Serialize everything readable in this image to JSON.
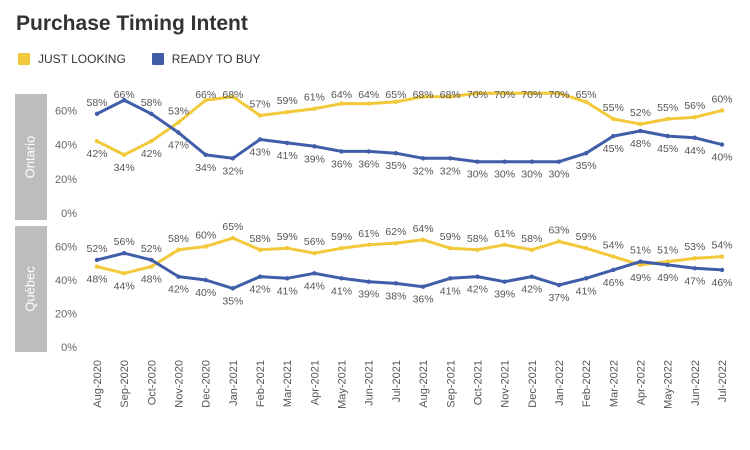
{
  "title": "Purchase Timing Intent",
  "colors": {
    "just_looking": "#F2C93A",
    "ready_to_buy": "#3F5DA8",
    "panel_strip": "#BDBDBD"
  },
  "legend": [
    {
      "label": "JUST LOOKING",
      "color": "#F2C93A"
    },
    {
      "label": "READY TO BUY",
      "color": "#3F5DA8"
    }
  ],
  "chart_data": {
    "type": "line",
    "title": "Purchase Timing Intent",
    "categories": [
      "Aug-2020",
      "Sep-2020",
      "Oct-2020",
      "Nov-2020",
      "Dec-2020",
      "Jan-2021",
      "Feb-2021",
      "Mar-2021",
      "Apr-2021",
      "May-2021",
      "Jun-2021",
      "Jul-2021",
      "Aug-2021",
      "Sep-2021",
      "Oct-2021",
      "Nov-2021",
      "Dec-2021",
      "Jan-2022",
      "Feb-2022",
      "Mar-2022",
      "Apr-2022",
      "May-2022",
      "Jun-2022",
      "Jul-2022"
    ],
    "y_ticks": [
      "0%",
      "20%",
      "40%",
      "60%"
    ],
    "ylim": [
      0,
      70
    ],
    "grid": false,
    "legend_position": "top-left",
    "panels": [
      {
        "name": "Ontario",
        "series": [
          {
            "name": "JUST LOOKING",
            "values": [
              42,
              34,
              42,
              53,
              66,
              68,
              57,
              59,
              61,
              64,
              64,
              65,
              68,
              68,
              70,
              70,
              70,
              70,
              65,
              55,
              52,
              55,
              56,
              60
            ]
          },
          {
            "name": "READY TO BUY",
            "values": [
              58,
              66,
              58,
              47,
              34,
              32,
              43,
              41,
              39,
              36,
              36,
              35,
              32,
              32,
              30,
              30,
              30,
              30,
              35,
              45,
              48,
              45,
              44,
              40
            ]
          }
        ]
      },
      {
        "name": "Québec",
        "series": [
          {
            "name": "JUST LOOKING",
            "values": [
              48,
              44,
              48,
              58,
              60,
              65,
              58,
              59,
              56,
              59,
              61,
              62,
              64,
              59,
              58,
              61,
              58,
              63,
              59,
              54,
              49,
              51,
              53,
              54
            ]
          },
          {
            "name": "READY TO BUY",
            "values": [
              52,
              56,
              52,
              42,
              40,
              35,
              42,
              41,
              44,
              41,
              39,
              38,
              36,
              41,
              42,
              39,
              42,
              37,
              41,
              46,
              51,
              49,
              47,
              46
            ]
          }
        ]
      }
    ]
  }
}
